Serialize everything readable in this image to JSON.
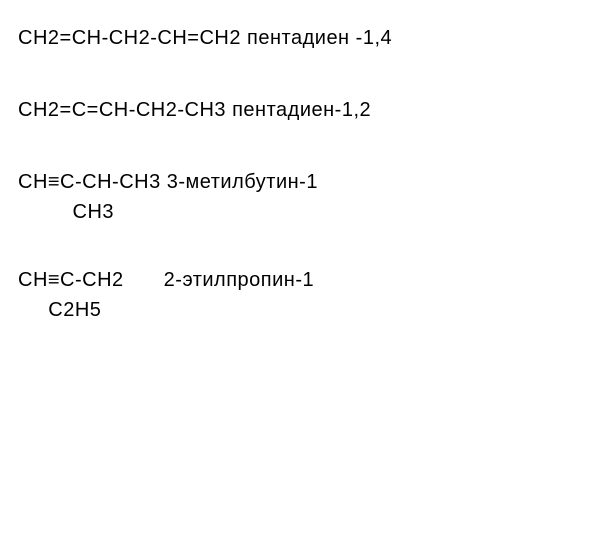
{
  "compounds": [
    {
      "main_line": "CH2=CH-CH2-CH=CH2  пентадиен -1,4",
      "substituent_line": null
    },
    {
      "main_line": "CH2=C=CH-CH2-CH3   пентадиен-1,2",
      "substituent_line": null
    },
    {
      "main_line": "CH≡C-CH-CH3  3-метилбутин-1",
      "substituent_line": "         CH3"
    },
    {
      "main_line_formula": "CH≡C-CH2",
      "main_line_name": "2-этилпропин-1",
      "substituent_line": "     C2H5"
    }
  ],
  "styling": {
    "background_color": "#ffffff",
    "text_color": "#000000",
    "font_size": 20,
    "font_family": "Arial",
    "line_spacing": 44
  }
}
